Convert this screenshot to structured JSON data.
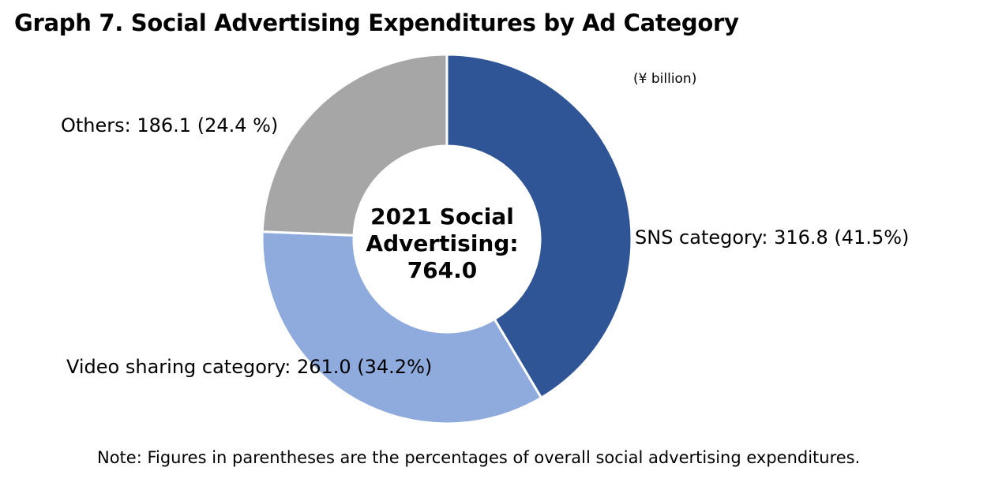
{
  "title": "Graph 7. Social Advertising Expenditures by Ad Category",
  "unit": "(¥ billion)",
  "center_label": {
    "line1": "2021 Social",
    "line2": "Advertising:",
    "line3": "764.0"
  },
  "note": "Note: Figures in parentheses are the percentages of overall social advertising expenditures.",
  "labels": {
    "sns": "SNS category: 316.8 (41.5%)",
    "video": "Video sharing category: 261.0 (34.2%)",
    "others": "Others: 186.1 (24.4 %)"
  },
  "colors": {
    "sns": "#2F5597",
    "video": "#8FAADC",
    "others": "#A6A6A6",
    "separator": "#FFFFFF"
  },
  "chart_data": {
    "type": "pie",
    "title": "Graph 7. Social Advertising Expenditures by Ad Category",
    "unit": "¥ billion",
    "total": 764.0,
    "categories": [
      "SNS category",
      "Video sharing category",
      "Others"
    ],
    "values": [
      316.8,
      261.0,
      186.1
    ],
    "percentages": [
      41.5,
      34.2,
      24.4
    ],
    "donut": true,
    "start_angle_deg": 0,
    "direction": "clockwise"
  }
}
